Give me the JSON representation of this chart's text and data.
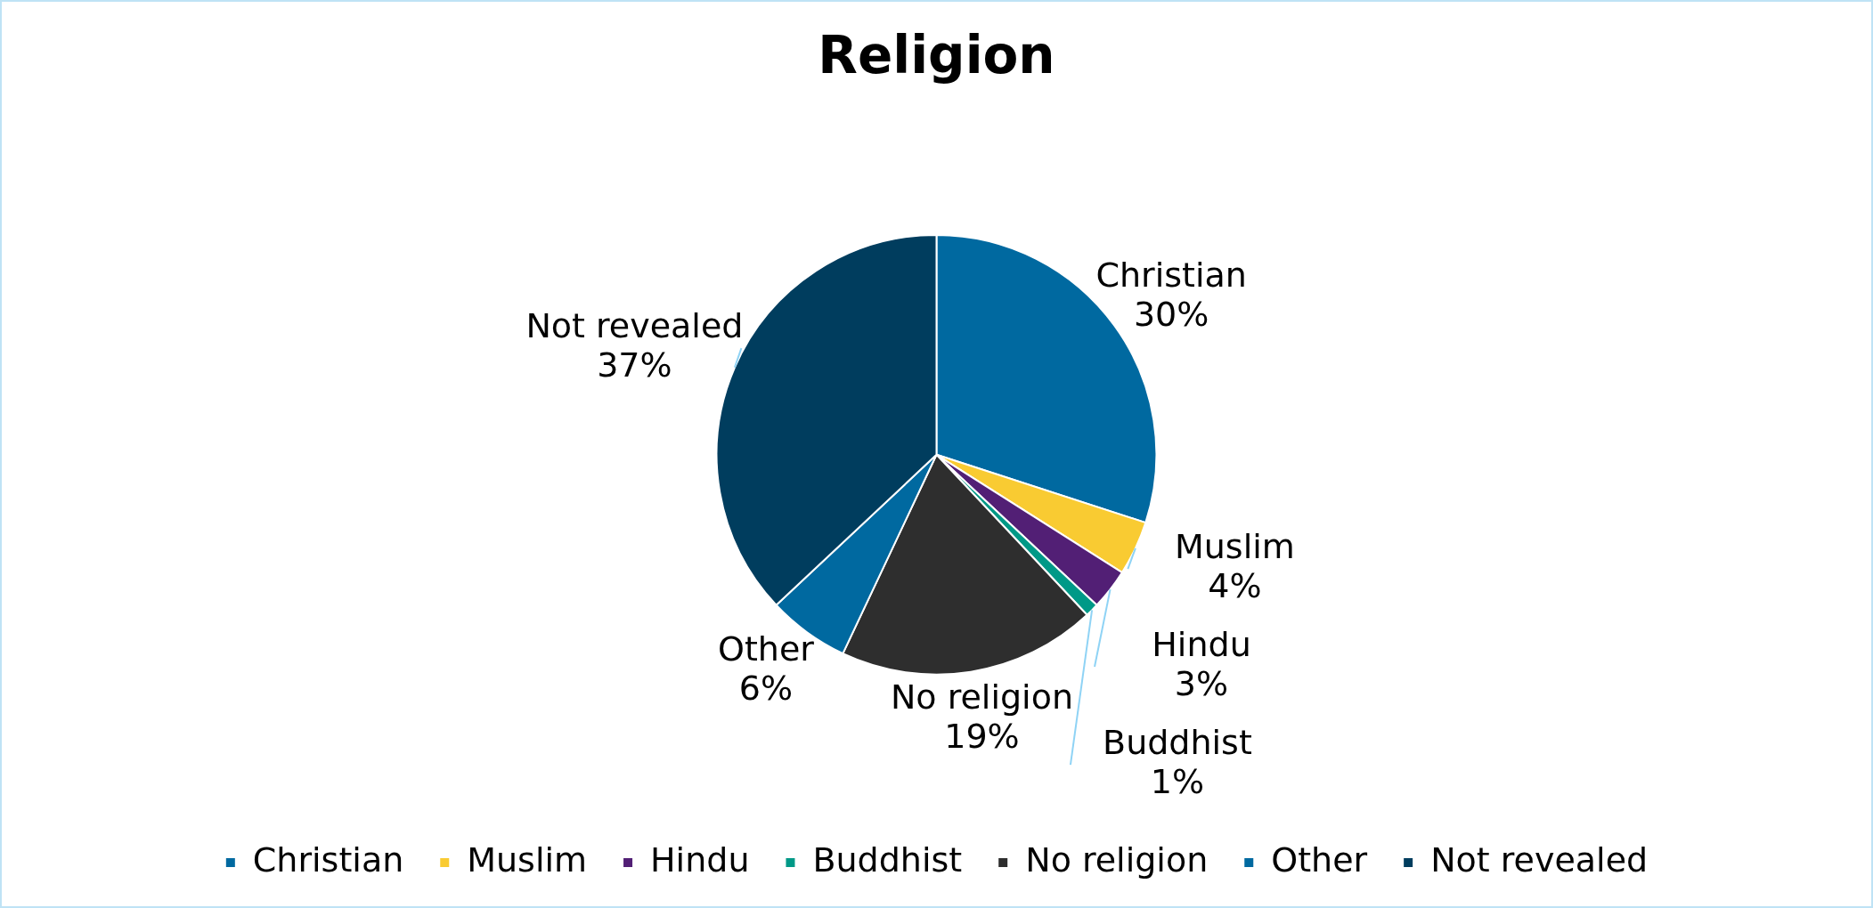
{
  "chart_data": {
    "type": "pie",
    "title": "Religion",
    "categories": [
      "Christian",
      "Muslim",
      "Hindu",
      "Buddhist",
      "No religion",
      "Other",
      "Not revealed"
    ],
    "values": [
      30,
      4,
      3,
      1,
      19,
      6,
      37
    ],
    "value_labels": [
      "30%",
      "4%",
      "3%",
      "1%",
      "19%",
      "6%",
      "37%"
    ],
    "colors": [
      "#0069a0",
      "#f9cb32",
      "#521f75",
      "#009987",
      "#2e2e2e",
      "#0069a0",
      "#003d5e"
    ],
    "legend": "bottom"
  }
}
